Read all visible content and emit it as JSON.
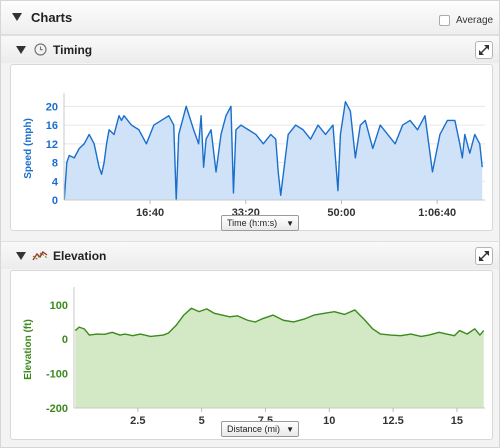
{
  "header": {
    "title": "Charts",
    "average_label": "Average"
  },
  "timing": {
    "title": "Timing",
    "x_select": "Time (h:m:s)",
    "chart_data": {
      "type": "area",
      "title": "",
      "xlabel": "",
      "ylabel": "Speed (mph)",
      "xlim": [
        "0:01:40",
        "1:15:00"
      ],
      "ylim": [
        0,
        22
      ],
      "y_ticks": [
        0,
        4,
        8,
        12,
        16,
        20
      ],
      "x_ticks": [
        "16:40",
        "33:20",
        "50:00",
        "1:06:40"
      ],
      "grid": "horizontal",
      "colors": {
        "line": "#1a6fcc",
        "fill": "#cfe2f8"
      },
      "series": [
        {
          "x": [
            "0:01:43",
            "0:02:09",
            "0:02:35",
            "0:03:27",
            "0:04:19",
            "0:05:11",
            "0:06:03",
            "0:06:55",
            "0:07:47",
            "0:08:13",
            "0:08:39",
            "0:09:05",
            "0:09:31",
            "0:10:23",
            "0:11:15",
            "0:11:41",
            "0:12:07",
            "0:13:25",
            "0:14:43",
            "0:16:01",
            "0:17:19",
            "0:18:37",
            "0:19:55",
            "0:20:47",
            "0:21:13",
            "0:21:39",
            "0:22:05",
            "0:22:57",
            "0:24:15",
            "0:25:07",
            "0:25:33",
            "0:25:59",
            "0:26:25",
            "0:27:17",
            "0:28:09",
            "0:29:01",
            "0:29:53",
            "0:30:45",
            "0:31:11",
            "0:31:37",
            "0:32:29",
            "0:33:47",
            "0:35:05",
            "0:36:23",
            "0:37:41",
            "0:38:33",
            "0:38:59",
            "0:39:25",
            "0:40:43",
            "0:42:01",
            "0:43:19",
            "0:44:37",
            "0:45:55",
            "0:47:13",
            "0:48:31",
            "0:48:57",
            "0:49:23",
            "0:49:49",
            "0:50:41",
            "0:51:33",
            "0:52:25",
            "0:53:17",
            "0:54:09",
            "0:55:27",
            "0:56:45",
            "0:58:03",
            "0:59:21",
            "1:00:39",
            "1:01:57",
            "1:03:15",
            "1:04:33",
            "1:05:51",
            "1:07:09",
            "1:08:27",
            "1:09:45",
            "1:10:37",
            "1:11:03",
            "1:11:29",
            "1:12:21",
            "1:13:13",
            "1:14:05",
            "1:14:31"
          ],
          "values": [
            0,
            8,
            9.5,
            9,
            11,
            12,
            14,
            12,
            7,
            5.5,
            8,
            12,
            15,
            14,
            18,
            17,
            18,
            16,
            15,
            12,
            16,
            17,
            18,
            16,
            0,
            14,
            16,
            20,
            15,
            12,
            18,
            7,
            13,
            15,
            6,
            14,
            18,
            20,
            1.5,
            15,
            16,
            15,
            14,
            12,
            14,
            13,
            6,
            1,
            14,
            16,
            15,
            13,
            16,
            14,
            16,
            9,
            2,
            14,
            21,
            19,
            9,
            16,
            17,
            11,
            16,
            14,
            12,
            16,
            17,
            15,
            18,
            6,
            14,
            17,
            17,
            12,
            9,
            14,
            10,
            14,
            12,
            7
          ]
        }
      ]
    }
  },
  "elevation": {
    "title": "Elevation",
    "x_select": "Distance (mi)",
    "chart_data": {
      "type": "area",
      "title": "",
      "xlabel": "",
      "ylabel": "Elevation (ft)",
      "xlim": [
        0,
        16.1
      ],
      "ylim": [
        -200,
        140
      ],
      "y_ticks": [
        -200,
        -100,
        0,
        100
      ],
      "x_ticks": [
        "2.5",
        "5",
        "7.5",
        "10",
        "12.5",
        "15"
      ],
      "grid": "none",
      "colors": {
        "line": "#3c8a1e",
        "fill": "#d3e8c4"
      },
      "series": [
        {
          "x": [
            0.05,
            0.2,
            0.4,
            0.6,
            0.9,
            1.2,
            1.5,
            1.8,
            2.0,
            2.3,
            2.6,
            3.0,
            3.5,
            3.7,
            4.0,
            4.3,
            4.6,
            4.9,
            5.2,
            5.5,
            5.8,
            6.1,
            6.4,
            6.8,
            7.1,
            7.4,
            7.8,
            8.2,
            8.6,
            9.0,
            9.4,
            9.8,
            10.2,
            10.6,
            11.0,
            11.2,
            11.4,
            11.7,
            12.0,
            12.4,
            12.8,
            13.2,
            13.6,
            13.9,
            14.3,
            14.6,
            14.9,
            15.1,
            15.4,
            15.7,
            15.9,
            16.05
          ],
          "values": [
            25,
            35,
            30,
            12,
            15,
            14,
            20,
            12,
            15,
            10,
            15,
            8,
            12,
            18,
            40,
            70,
            90,
            80,
            88,
            75,
            70,
            65,
            68,
            55,
            50,
            60,
            70,
            55,
            50,
            58,
            70,
            75,
            80,
            72,
            85,
            70,
            55,
            30,
            15,
            12,
            10,
            15,
            8,
            12,
            20,
            15,
            10,
            25,
            15,
            30,
            12,
            25
          ]
        }
      ]
    }
  }
}
